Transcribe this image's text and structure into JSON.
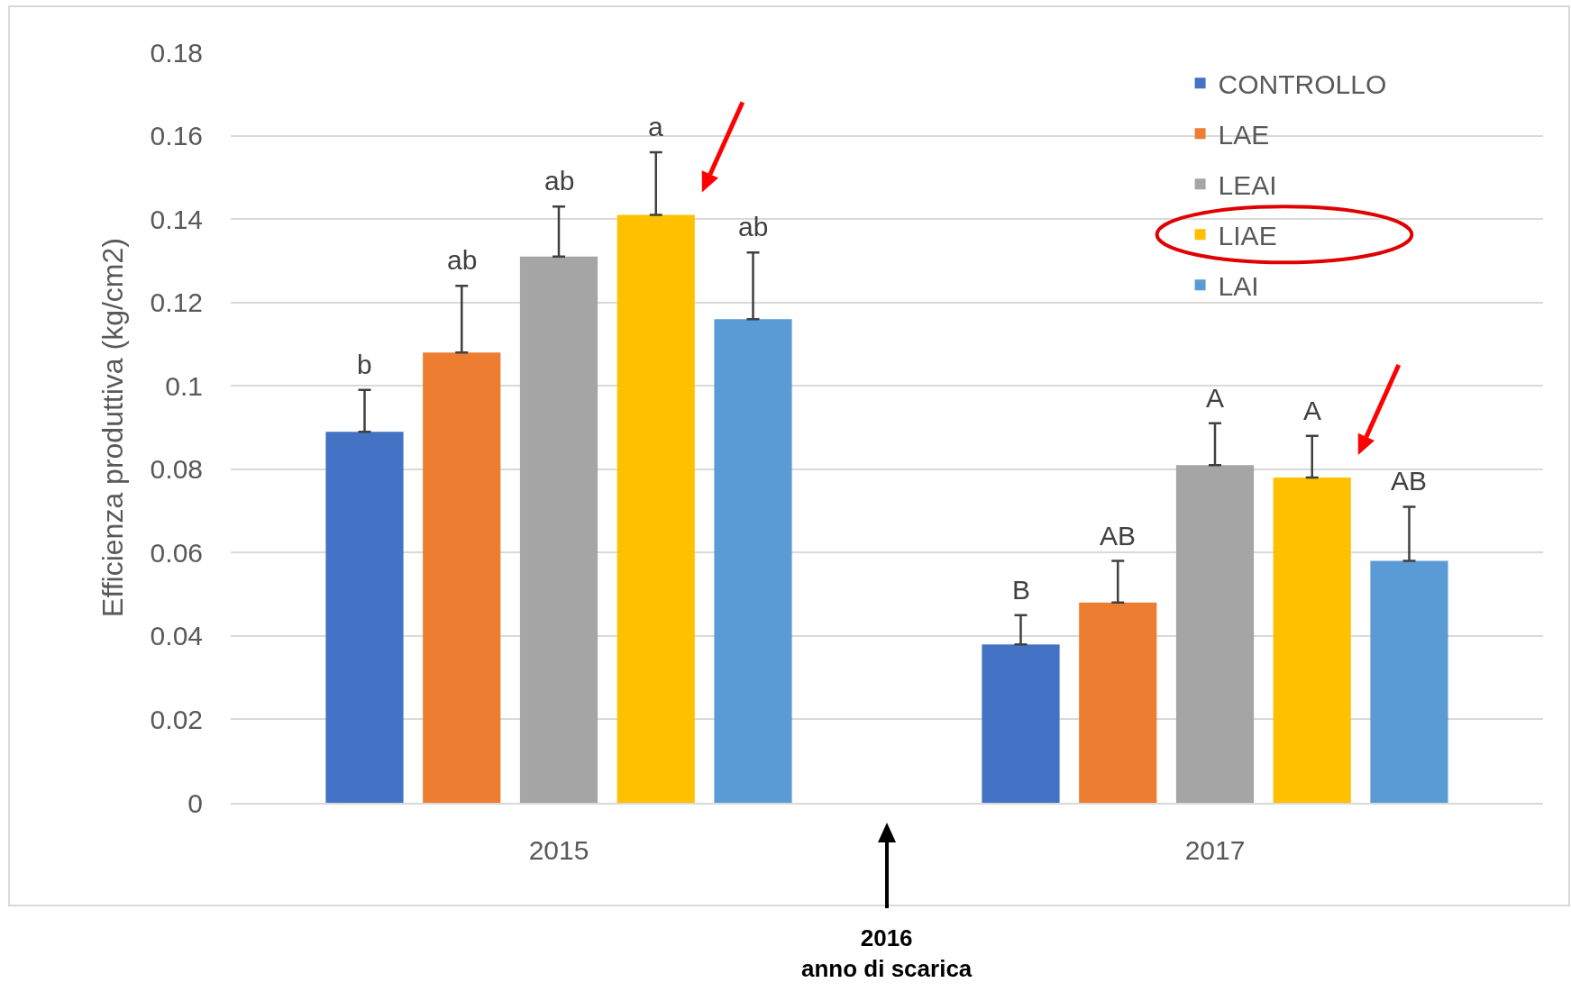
{
  "chart_data": {
    "type": "bar",
    "ylabel": "Efficienza produttiva (kg/cm2)",
    "categories": [
      "2015",
      "2017"
    ],
    "series": [
      {
        "name": "CONTROLLO",
        "color": "#4472c4",
        "values": [
          0.089,
          0.038
        ],
        "errors": [
          [
            0.089,
            0.099
          ],
          [
            0.038,
            0.045
          ]
        ]
      },
      {
        "name": "LAE",
        "color": "#ed7d31",
        "values": [
          0.108,
          0.048
        ],
        "errors": [
          [
            0.108,
            0.124
          ],
          [
            0.048,
            0.058
          ]
        ]
      },
      {
        "name": "LEAI",
        "color": "#a5a5a5",
        "values": [
          0.131,
          0.081
        ],
        "errors": [
          [
            0.131,
            0.143
          ],
          [
            0.081,
            0.091
          ]
        ]
      },
      {
        "name": "LIAE",
        "color": "#ffc000",
        "values": [
          0.141,
          0.078
        ],
        "errors": [
          [
            0.141,
            0.156
          ],
          [
            0.078,
            0.088
          ]
        ]
      },
      {
        "name": "LAI",
        "color": "#5b9bd5",
        "values": [
          0.116,
          0.058
        ],
        "errors": [
          [
            0.116,
            0.132
          ],
          [
            0.058,
            0.071
          ]
        ]
      }
    ],
    "ylim": [
      0,
      0.18
    ],
    "yticks": [
      0,
      0.02,
      0.04,
      0.06,
      0.08,
      0.1,
      0.12,
      0.14,
      0.16,
      0.18
    ],
    "grid": "y",
    "legend": "top right",
    "annotations": [
      "b",
      "ab",
      "ab",
      "a",
      "ab",
      "B",
      "AB",
      "A",
      "A",
      "AB",
      "2016\nanno di scarica"
    ]
  }
}
